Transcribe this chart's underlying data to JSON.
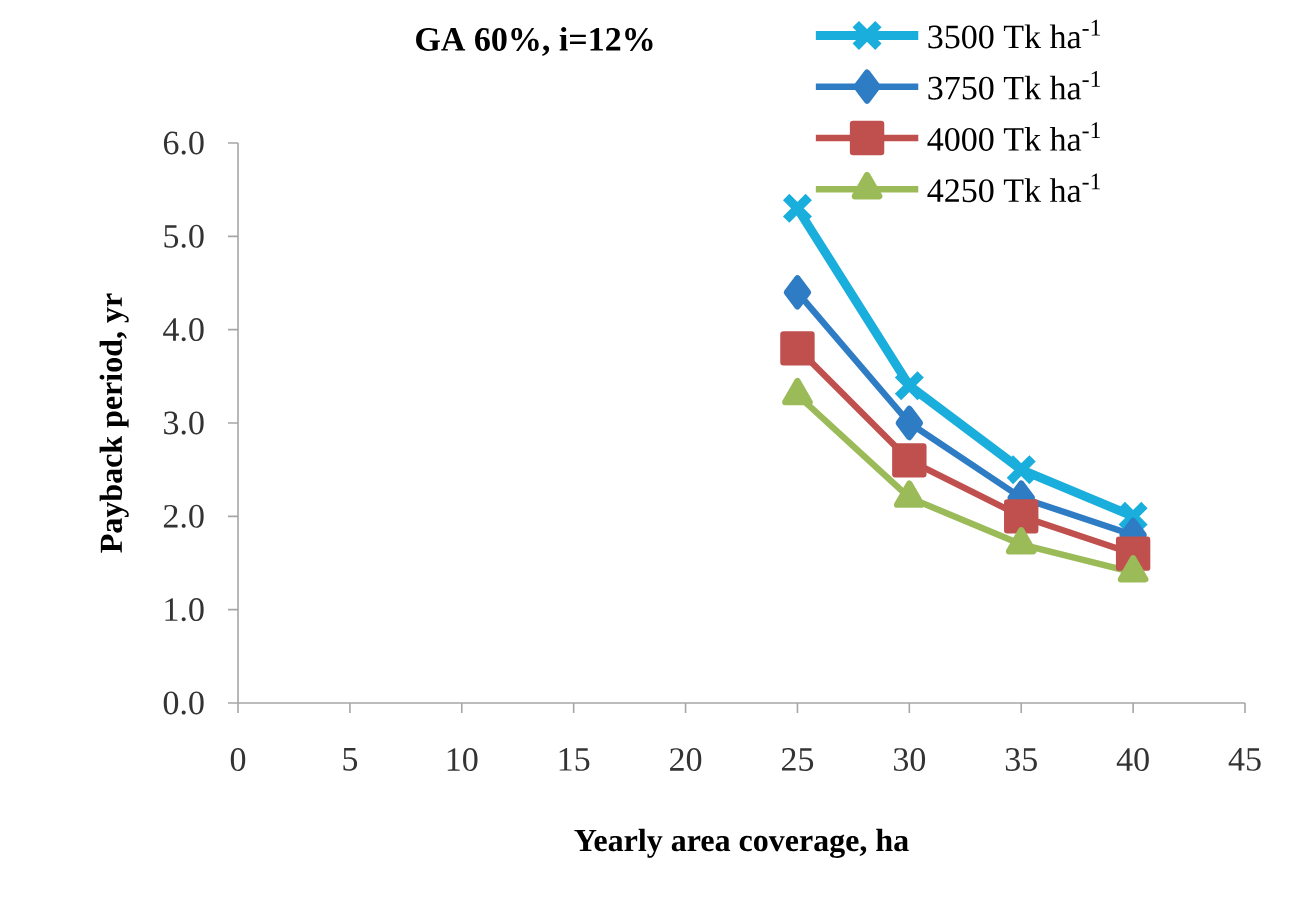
{
  "chart_data": {
    "type": "line",
    "title": "GA 60%, i=12%",
    "xlabel": "Yearly area coverage, ha",
    "ylabel": "Payback  period, yr",
    "x": [
      25,
      30,
      35,
      40
    ],
    "series": [
      {
        "name": "3500 Tk ha$^{-1}$",
        "color": "#1aaedc",
        "marker": "cross",
        "values": [
          5.3,
          3.4,
          2.5,
          2.0
        ]
      },
      {
        "name": "3750 Tk ha$^{-1}$",
        "color": "#2e7cc4",
        "marker": "diamond",
        "values": [
          4.4,
          3.0,
          2.2,
          1.8
        ]
      },
      {
        "name": "4000 Tk ha$^{-1}$",
        "color": "#c0504d",
        "marker": "square",
        "values": [
          3.8,
          2.6,
          2.0,
          1.6
        ]
      },
      {
        "name": "4250 Tk ha$^{-1}$",
        "color": "#9bbb59",
        "marker": "triangle",
        "values": [
          3.3,
          2.2,
          1.7,
          1.4
        ]
      }
    ],
    "xlim": [
      0,
      45
    ],
    "ylim": [
      0,
      6
    ],
    "xticks": [
      0,
      5,
      10,
      15,
      20,
      25,
      30,
      35,
      40,
      45
    ],
    "yticks": [
      {
        "value": 0,
        "label": "0.0"
      },
      {
        "value": 1,
        "label": "1.0"
      },
      {
        "value": 2,
        "label": "2.0"
      },
      {
        "value": 3,
        "label": "3.0"
      },
      {
        "value": 4,
        "label": "4.0"
      },
      {
        "value": 5,
        "label": "5.0"
      },
      {
        "value": 6,
        "label": "6.0"
      }
    ],
    "legend": "top right"
  }
}
